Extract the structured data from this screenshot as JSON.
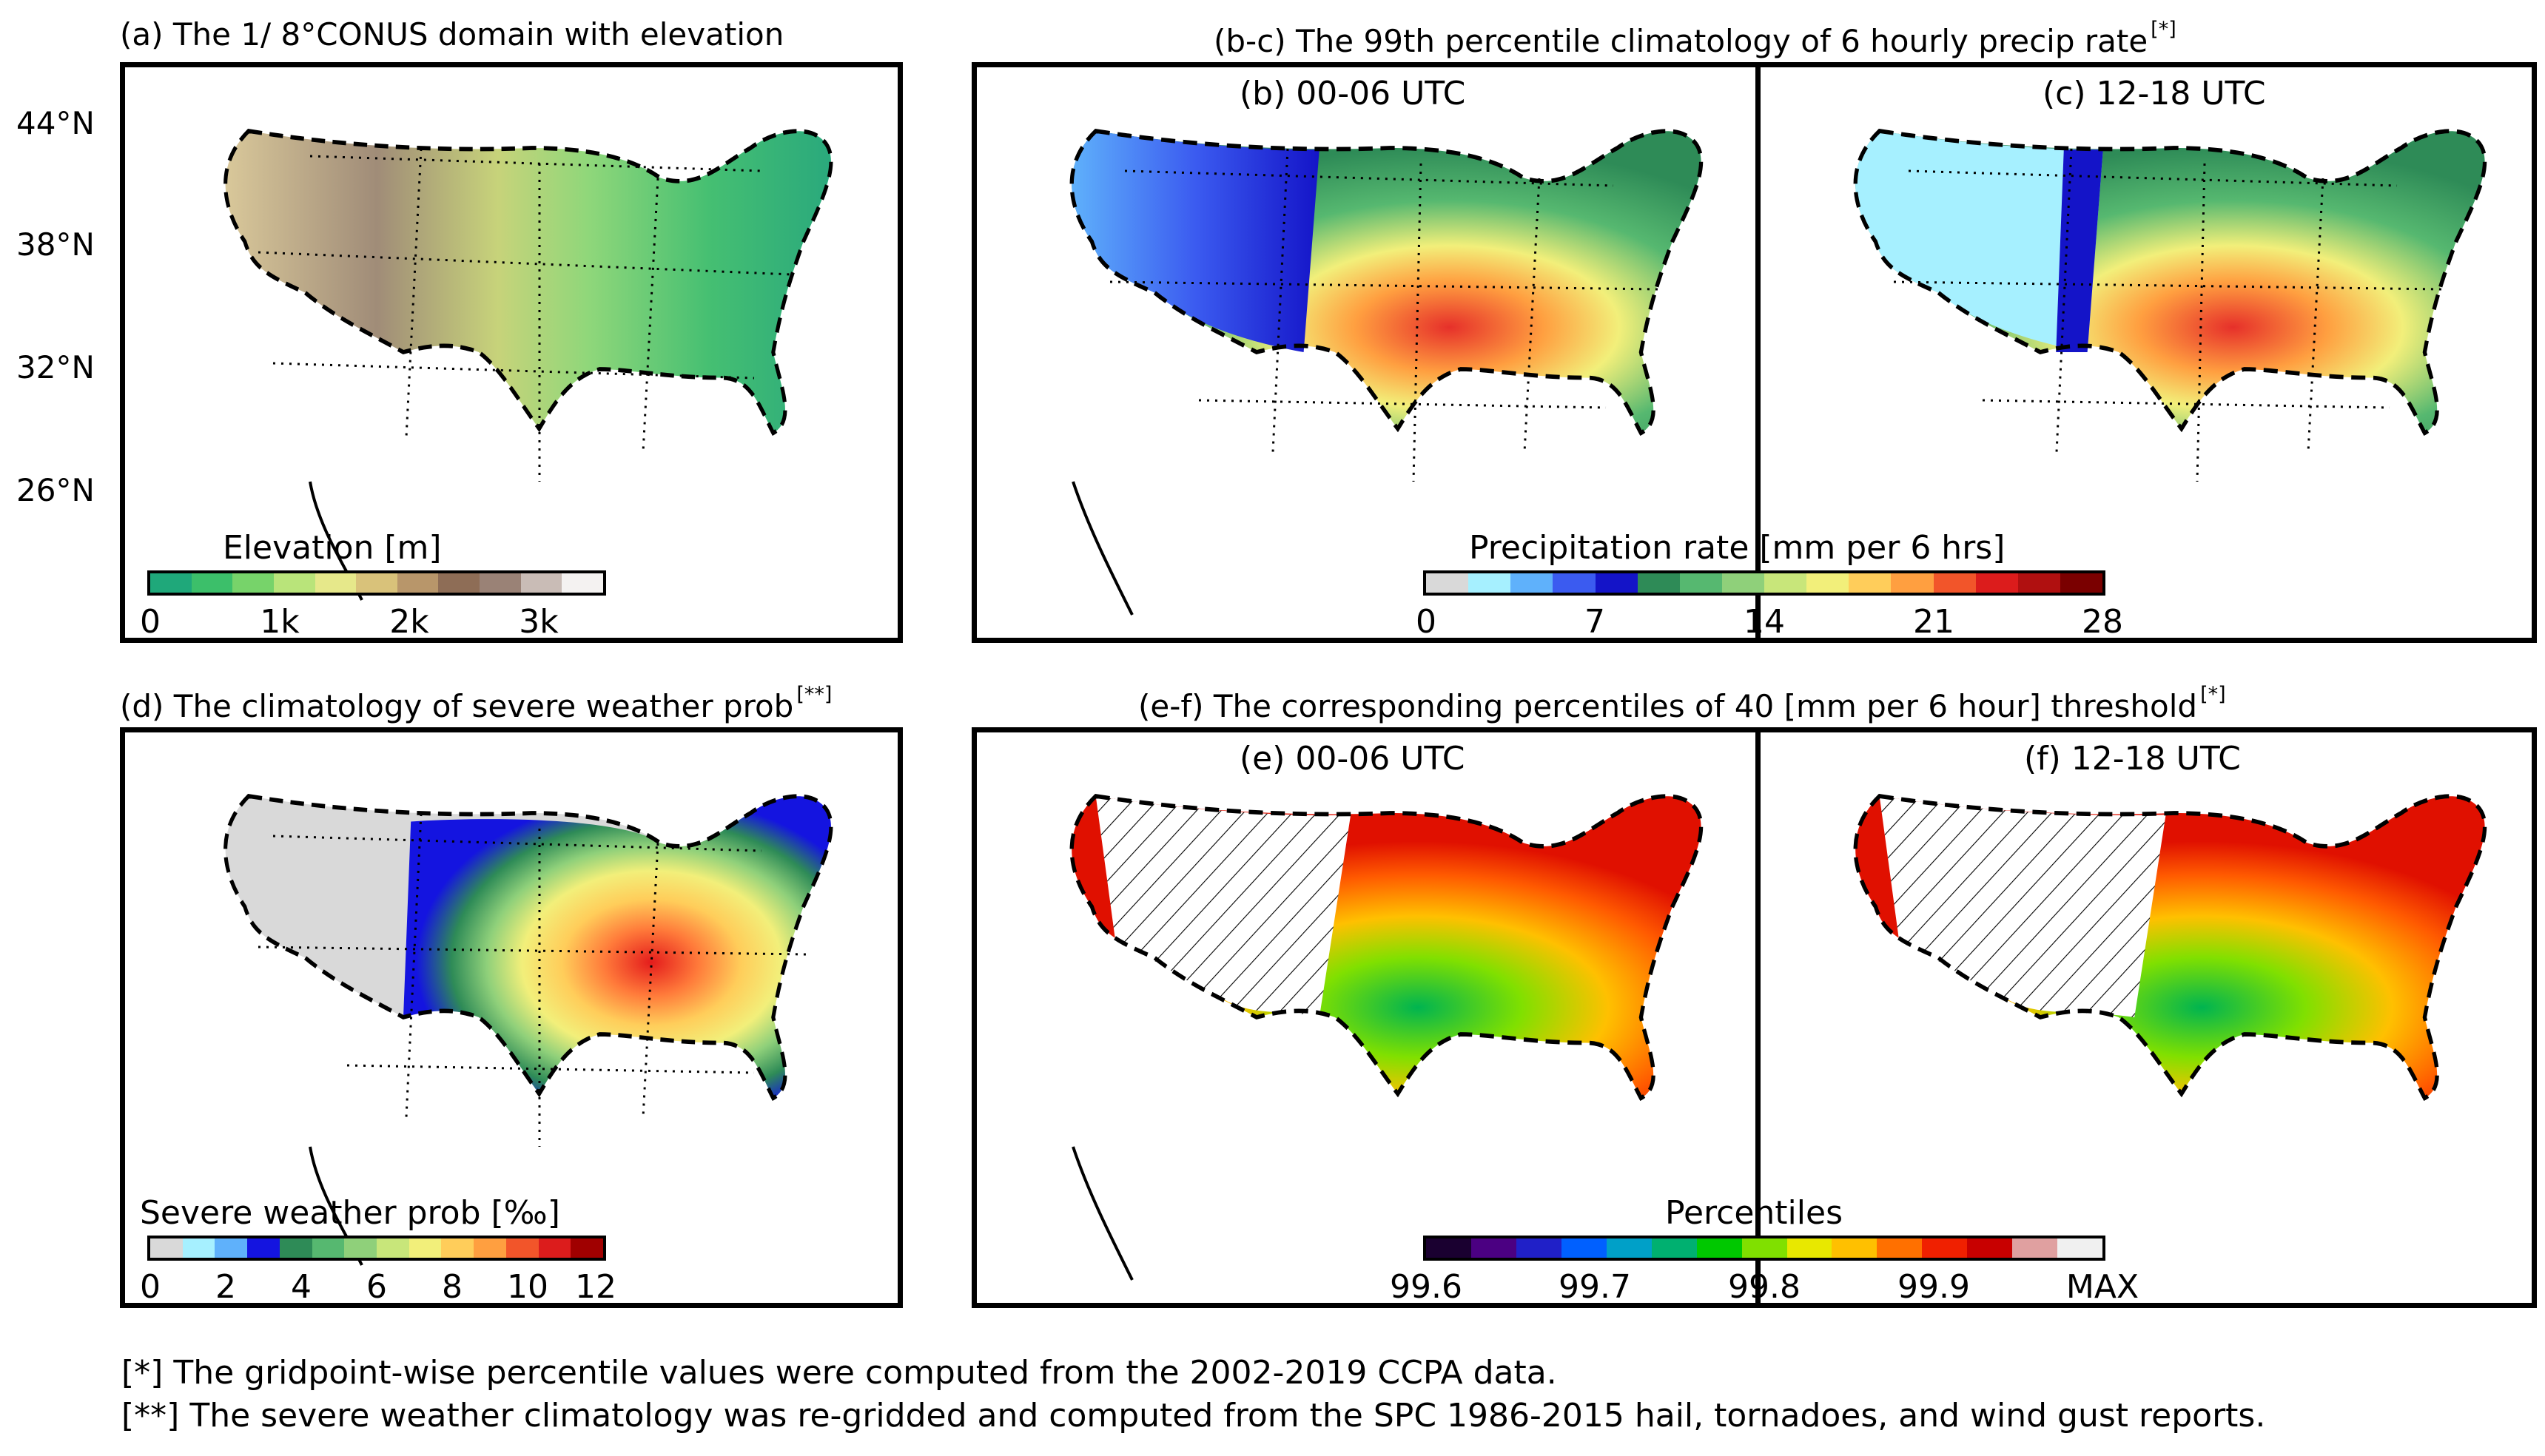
{
  "titles": {
    "a": "(a) The 1/ 8°CONUS domain with elevation",
    "bc": "(b-c) The 99th percentile climatology of 6 hourly precip rate",
    "bc_mark": "[*]",
    "d": "(d) The climatology of severe weather prob",
    "d_mark": "[**]",
    "ef": "(e-f) The corresponding percentiles of 40 [mm per 6 hour] threshold",
    "ef_mark": "[*]"
  },
  "subtitles": {
    "b": "(b) 00-06 UTC",
    "c": "(c) 12-18 UTC",
    "e": "(e) 00-06 UTC",
    "f": "(f) 12-18 UTC"
  },
  "lat_labels": [
    "44°N",
    "38°N",
    "32°N",
    "26°N"
  ],
  "colorbars": {
    "elevation": {
      "title": "Elevation [m]",
      "ticks": [
        "0",
        "1k",
        "2k",
        "3k"
      ],
      "colors": [
        "#1fa87a",
        "#3cbf6a",
        "#77d36a",
        "#b9e47a",
        "#e6e88a",
        "#d9c27a",
        "#b8966a",
        "#8e6d56",
        "#9a8276",
        "#c9bcb6",
        "#f4f2f1"
      ]
    },
    "precip": {
      "title": "Precipitation rate [mm per 6 hrs]",
      "ticks": [
        "0",
        "7",
        "14",
        "21",
        "28"
      ],
      "colors": [
        "#d9d9d9",
        "#a6f0ff",
        "#5fb1fb",
        "#3b5bf0",
        "#1414c8",
        "#2e8b57",
        "#56b870",
        "#8fd07a",
        "#c8e67a",
        "#f2ef7a",
        "#ffcd5a",
        "#ff9f40",
        "#f2552a",
        "#dc1c1c",
        "#b01010",
        "#7a0000"
      ]
    },
    "severe": {
      "title": "Severe weather prob [‰]",
      "ticks": [
        "0",
        "2",
        "4",
        "6",
        "8",
        "10",
        "12"
      ],
      "colors": [
        "#d9d9d9",
        "#a6f0ff",
        "#5fb1fb",
        "#1414e0",
        "#2e8b57",
        "#56b870",
        "#8fd07a",
        "#c8e67a",
        "#f2ef7a",
        "#ffcd5a",
        "#ff9f40",
        "#f2552a",
        "#dc1c1c",
        "#a00000"
      ]
    },
    "percentile": {
      "title": "Percentiles",
      "ticks": [
        "99.6",
        "99.7",
        "99.8",
        "99.9",
        "MAX"
      ],
      "colors": [
        "#1a0030",
        "#4b0082",
        "#2020c8",
        "#0060ff",
        "#00a0c8",
        "#00b070",
        "#00c800",
        "#80e000",
        "#e8e800",
        "#ffc000",
        "#ff7000",
        "#f02000",
        "#c80000",
        "#e0a0a0",
        "#f0f0f0"
      ]
    }
  },
  "footnotes": [
    "[*]   The gridpoint-wise percentile values were computed from the 2002-2019 CCPA data.",
    "[**] The severe weather climatology was re-gridded and computed from the SPC 1986-2015 hail, tornadoes, and wind gust reports."
  ],
  "chart_data": [
    {
      "type": "heatmap",
      "title": "(a) The 1/ 8°CONUS domain with elevation",
      "colorbar_label": "Elevation [m]",
      "range": [
        0,
        3500
      ],
      "ylabels": [
        "44°N",
        "38°N",
        "32°N",
        "26°N"
      ]
    },
    {
      "type": "heatmap",
      "title": "(b) 00-06 UTC",
      "colorbar_label": "Precipitation rate [mm per 6 hrs]",
      "range": [
        0,
        28
      ]
    },
    {
      "type": "heatmap",
      "title": "(c) 12-18 UTC",
      "colorbar_label": "Precipitation rate [mm per 6 hrs]",
      "range": [
        0,
        28
      ]
    },
    {
      "type": "heatmap",
      "title": "(d) The climatology of severe weather prob",
      "colorbar_label": "Severe weather prob [‰]",
      "range": [
        0,
        12
      ]
    },
    {
      "type": "heatmap",
      "title": "(e) 00-06 UTC",
      "colorbar_label": "Percentiles",
      "range": [
        99.6,
        "MAX"
      ]
    },
    {
      "type": "heatmap",
      "title": "(f) 12-18 UTC",
      "colorbar_label": "Percentiles",
      "range": [
        99.6,
        "MAX"
      ]
    }
  ]
}
